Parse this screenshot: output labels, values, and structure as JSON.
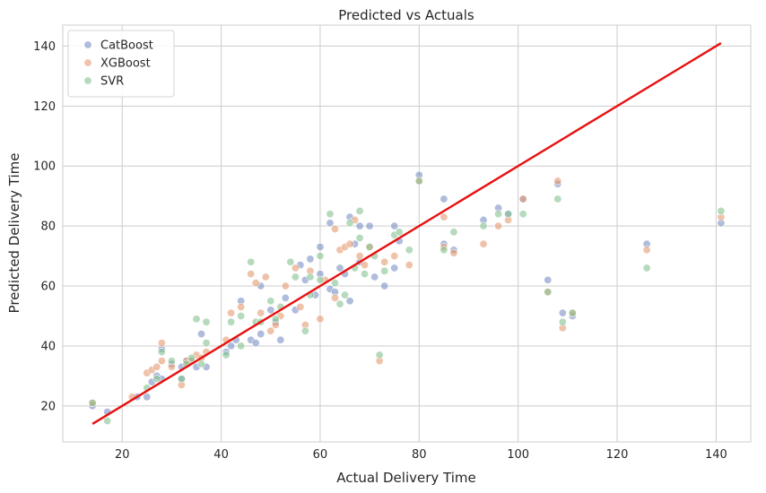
{
  "chart_data": {
    "type": "scatter",
    "title": "Predicted vs Actuals",
    "xlabel": "Actual Delivery Time",
    "ylabel": "Predicted Delivery Time",
    "xlim": [
      8,
      147
    ],
    "ylim": [
      8,
      147
    ],
    "xticks": [
      20,
      40,
      60,
      80,
      100,
      120,
      140
    ],
    "yticks": [
      20,
      40,
      60,
      80,
      100,
      120,
      140
    ],
    "grid": true,
    "legend_position": "top-left",
    "reference_line": {
      "x": [
        14,
        141
      ],
      "y": [
        14,
        141
      ],
      "color": "#e8100f"
    },
    "series": [
      {
        "name": "CatBoost",
        "color": "#7a8fc4",
        "points": [
          [
            14,
            20
          ],
          [
            17,
            18
          ],
          [
            23,
            23
          ],
          [
            25,
            23
          ],
          [
            26,
            28
          ],
          [
            27,
            30
          ],
          [
            28,
            29
          ],
          [
            28,
            39
          ],
          [
            30,
            34
          ],
          [
            32,
            33
          ],
          [
            32,
            29
          ],
          [
            33,
            35
          ],
          [
            34,
            35
          ],
          [
            35,
            33
          ],
          [
            36,
            44
          ],
          [
            37,
            33
          ],
          [
            41,
            38
          ],
          [
            42,
            40
          ],
          [
            43,
            42
          ],
          [
            44,
            55
          ],
          [
            46,
            42
          ],
          [
            47,
            41
          ],
          [
            48,
            44
          ],
          [
            48,
            60
          ],
          [
            50,
            52
          ],
          [
            51,
            48
          ],
          [
            52,
            42
          ],
          [
            53,
            56
          ],
          [
            55,
            52
          ],
          [
            56,
            67
          ],
          [
            57,
            62
          ],
          [
            58,
            69
          ],
          [
            59,
            57
          ],
          [
            60,
            64
          ],
          [
            60,
            73
          ],
          [
            62,
            59
          ],
          [
            62,
            81
          ],
          [
            63,
            58
          ],
          [
            64,
            66
          ],
          [
            65,
            64
          ],
          [
            66,
            55
          ],
          [
            66,
            83
          ],
          [
            67,
            74
          ],
          [
            68,
            68
          ],
          [
            68,
            80
          ],
          [
            70,
            80
          ],
          [
            71,
            63
          ],
          [
            73,
            60
          ],
          [
            75,
            66
          ],
          [
            75,
            80
          ],
          [
            76,
            75
          ],
          [
            80,
            97
          ],
          [
            85,
            89
          ],
          [
            85,
            74
          ],
          [
            87,
            72
          ],
          [
            93,
            82
          ],
          [
            96,
            86
          ],
          [
            98,
            84
          ],
          [
            101,
            89
          ],
          [
            106,
            62
          ],
          [
            108,
            94
          ],
          [
            109,
            51
          ],
          [
            111,
            50
          ],
          [
            126,
            74
          ],
          [
            141,
            81
          ]
        ]
      },
      {
        "name": "XGBoost",
        "color": "#e59a72",
        "points": [
          [
            14,
            21
          ],
          [
            22,
            23
          ],
          [
            25,
            31
          ],
          [
            26,
            32
          ],
          [
            27,
            33
          ],
          [
            28,
            41
          ],
          [
            28,
            35
          ],
          [
            30,
            33
          ],
          [
            32,
            27
          ],
          [
            33,
            35
          ],
          [
            34,
            35
          ],
          [
            35,
            37
          ],
          [
            36,
            36
          ],
          [
            37,
            38
          ],
          [
            41,
            42
          ],
          [
            42,
            51
          ],
          [
            44,
            53
          ],
          [
            46,
            64
          ],
          [
            47,
            61
          ],
          [
            48,
            51
          ],
          [
            49,
            63
          ],
          [
            50,
            45
          ],
          [
            51,
            47
          ],
          [
            52,
            50
          ],
          [
            53,
            60
          ],
          [
            55,
            66
          ],
          [
            56,
            53
          ],
          [
            57,
            47
          ],
          [
            58,
            65
          ],
          [
            60,
            49
          ],
          [
            61,
            62
          ],
          [
            63,
            79
          ],
          [
            63,
            56
          ],
          [
            64,
            72
          ],
          [
            65,
            73
          ],
          [
            66,
            74
          ],
          [
            67,
            82
          ],
          [
            68,
            70
          ],
          [
            69,
            67
          ],
          [
            70,
            73
          ],
          [
            72,
            35
          ],
          [
            73,
            68
          ],
          [
            75,
            70
          ],
          [
            78,
            67
          ],
          [
            80,
            95
          ],
          [
            85,
            83
          ],
          [
            85,
            73
          ],
          [
            87,
            71
          ],
          [
            93,
            74
          ],
          [
            96,
            80
          ],
          [
            98,
            82
          ],
          [
            101,
            89
          ],
          [
            106,
            58
          ],
          [
            108,
            95
          ],
          [
            109,
            46
          ],
          [
            111,
            51
          ],
          [
            126,
            72
          ],
          [
            141,
            83
          ]
        ]
      },
      {
        "name": "SVR",
        "color": "#86c18f",
        "points": [
          [
            14,
            21
          ],
          [
            17,
            15
          ],
          [
            25,
            26
          ],
          [
            27,
            29
          ],
          [
            28,
            38
          ],
          [
            30,
            35
          ],
          [
            32,
            29
          ],
          [
            33,
            34
          ],
          [
            34,
            36
          ],
          [
            35,
            49
          ],
          [
            36,
            34
          ],
          [
            37,
            41
          ],
          [
            37,
            48
          ],
          [
            41,
            37
          ],
          [
            42,
            48
          ],
          [
            44,
            40
          ],
          [
            44,
            50
          ],
          [
            46,
            68
          ],
          [
            47,
            48
          ],
          [
            48,
            48
          ],
          [
            50,
            55
          ],
          [
            51,
            49
          ],
          [
            52,
            53
          ],
          [
            54,
            68
          ],
          [
            55,
            63
          ],
          [
            57,
            45
          ],
          [
            58,
            57
          ],
          [
            58,
            63
          ],
          [
            60,
            70
          ],
          [
            60,
            62
          ],
          [
            62,
            84
          ],
          [
            63,
            61
          ],
          [
            64,
            54
          ],
          [
            65,
            57
          ],
          [
            66,
            81
          ],
          [
            67,
            66
          ],
          [
            68,
            85
          ],
          [
            68,
            76
          ],
          [
            69,
            64
          ],
          [
            70,
            73
          ],
          [
            71,
            70
          ],
          [
            72,
            37
          ],
          [
            73,
            65
          ],
          [
            75,
            77
          ],
          [
            76,
            78
          ],
          [
            78,
            72
          ],
          [
            80,
            95
          ],
          [
            85,
            72
          ],
          [
            87,
            78
          ],
          [
            93,
            80
          ],
          [
            96,
            84
          ],
          [
            98,
            84
          ],
          [
            101,
            84
          ],
          [
            106,
            58
          ],
          [
            108,
            89
          ],
          [
            109,
            48
          ],
          [
            111,
            51
          ],
          [
            126,
            66
          ],
          [
            141,
            85
          ]
        ]
      }
    ]
  }
}
